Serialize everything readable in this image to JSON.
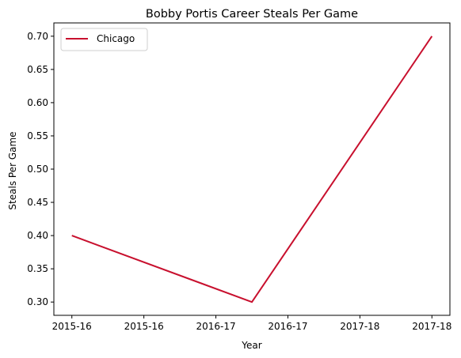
{
  "chart_data": {
    "type": "line",
    "title": "Bobby Portis Career Steals Per Game",
    "xlabel": "Year",
    "ylabel": "Steals Per Game",
    "x_tick_labels": [
      "2015-16",
      "2015-16",
      "2016-17",
      "2016-17",
      "2017-18",
      "2017-18"
    ],
    "y_ticks": [
      0.3,
      0.35,
      0.4,
      0.45,
      0.5,
      0.55,
      0.6,
      0.65,
      0.7
    ],
    "y_tick_labels": [
      "0.30",
      "0.35",
      "0.40",
      "0.45",
      "0.50",
      "0.55",
      "0.60",
      "0.65",
      "0.70"
    ],
    "xlim": [
      -0.1,
      2.1
    ],
    "ylim": [
      0.28,
      0.72
    ],
    "grid": false,
    "legend_position": "top-left",
    "series": [
      {
        "name": "Chicago",
        "color": "#c8102e",
        "x": [
          "2015-16",
          "2016-17",
          "2017-18"
        ],
        "values": [
          0.4,
          0.3,
          0.7
        ]
      }
    ]
  }
}
